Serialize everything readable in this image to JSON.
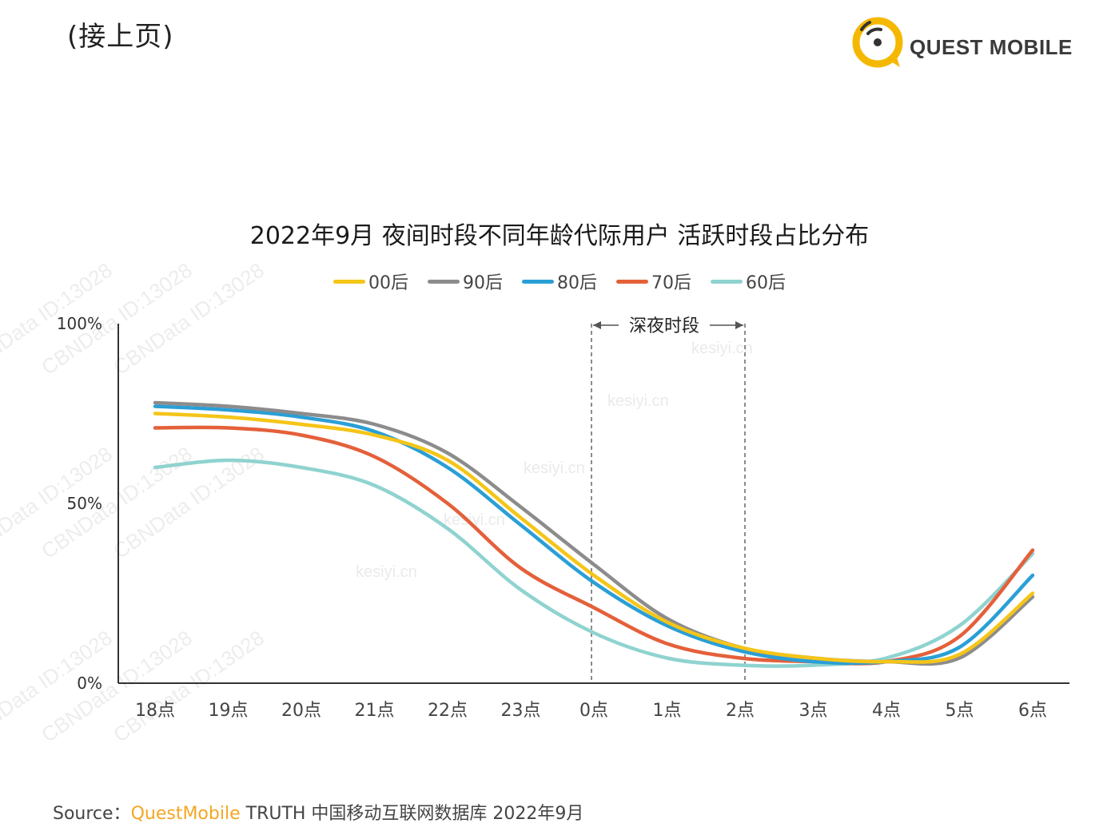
{
  "header": {
    "continuation_label": "(接上页)"
  },
  "logo": {
    "brand_name": "QUEST MOBILE"
  },
  "watermark": {
    "text": "CBNData ID:13028",
    "site_text": "kesiyi.cn"
  },
  "colors": {
    "00后": "#f5c518",
    "90后": "#8c8c8c",
    "80后": "#2a9fd6",
    "70后": "#e4603a",
    "60后": "#8fd3d0",
    "brand_orange": "#f5a623",
    "logo_yellow": "#f5b800"
  },
  "chart_data": {
    "type": "line",
    "title": "2022年9月 夜间时段不同年龄代际用户 活跃时段占比分布",
    "categories": [
      "18点",
      "19点",
      "20点",
      "21点",
      "22点",
      "23点",
      "0点",
      "1点",
      "2点",
      "3点",
      "4点",
      "5点",
      "6点"
    ],
    "y_tick_labels": [
      "0%",
      "50%",
      "100%"
    ],
    "ylim": [
      0,
      100
    ],
    "xlabel": "",
    "ylabel": "",
    "grid": false,
    "legend_position": "top-center",
    "annotation": {
      "label": "深夜时段",
      "from": "0点",
      "to": "2点"
    },
    "series": [
      {
        "name": "00后",
        "values": [
          75,
          74,
          72,
          69,
          62,
          46,
          30,
          17,
          10,
          7,
          6,
          8,
          25
        ]
      },
      {
        "name": "90后",
        "values": [
          78,
          77,
          75,
          72,
          64,
          49,
          33,
          18,
          10,
          7,
          6,
          7,
          24
        ]
      },
      {
        "name": "80后",
        "values": [
          77,
          76,
          74,
          70,
          60,
          44,
          28,
          16,
          9,
          6,
          6,
          10,
          30
        ]
      },
      {
        "name": "70后",
        "values": [
          71,
          71,
          69,
          63,
          50,
          32,
          21,
          11,
          7,
          6,
          6,
          13,
          37
        ]
      },
      {
        "name": "60后",
        "values": [
          60,
          62,
          60,
          55,
          43,
          26,
          14,
          7,
          5,
          5,
          7,
          16,
          36
        ]
      }
    ]
  },
  "source": {
    "prefix": "Source：",
    "brand": "QuestMobile",
    "rest": "TRUTH 中国移动互联网数据库 2022年9月"
  }
}
